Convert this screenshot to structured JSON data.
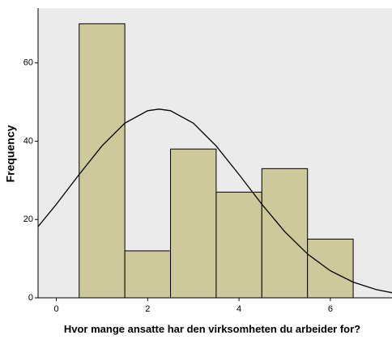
{
  "chart_data": {
    "type": "histogram",
    "x_label": "Hvor mange ansatte har den virksomheten du arbeider for?",
    "y_label": "Frequency",
    "bins": [
      0.5,
      1.5,
      2.5,
      3.5,
      4.5,
      5.5,
      6.5
    ],
    "values": [
      70,
      12,
      38,
      27,
      33,
      15
    ],
    "color": "#cdc99a",
    "curve": {
      "x": [
        -0.4,
        0,
        0.5,
        1,
        1.5,
        2,
        2.25,
        2.5,
        3,
        3.5,
        4,
        4.5,
        5,
        5.5,
        6,
        6.5,
        7,
        7.35
      ],
      "values": [
        18.2,
        23.9,
        31.5,
        38.8,
        44.6,
        47.8,
        48.2,
        47.8,
        44.6,
        38.8,
        31.5,
        23.9,
        16.9,
        11.2,
        6.9,
        4.0,
        2.1,
        1.3
      ],
      "color": "#000000"
    },
    "xlim": [
      -0.4,
      7.35
    ],
    "ylim": [
      0,
      74
    ],
    "xticks": [
      0,
      2,
      4,
      6
    ],
    "yticks": [
      0,
      20,
      40,
      60
    ],
    "background": "#ebebeb"
  }
}
